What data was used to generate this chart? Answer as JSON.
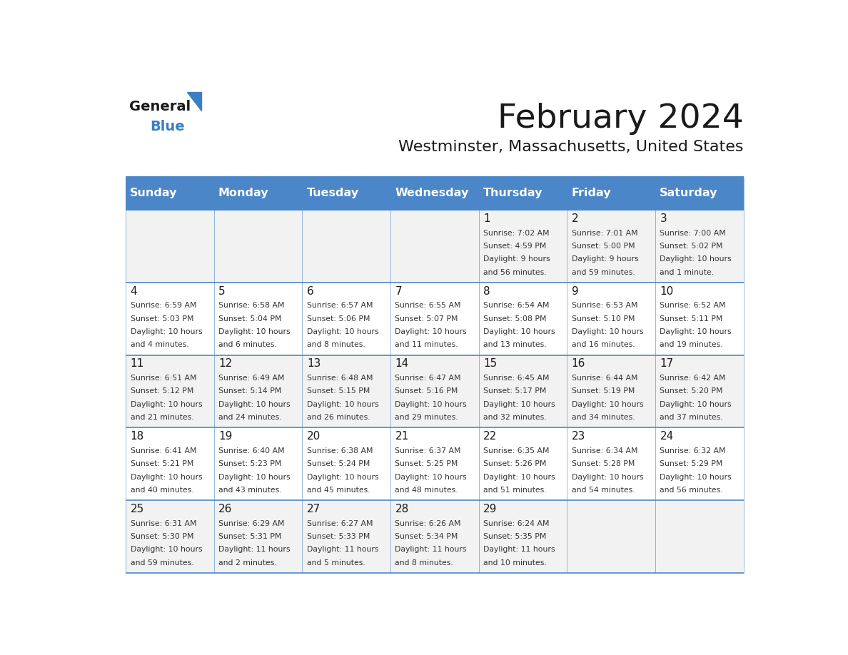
{
  "title": "February 2024",
  "subtitle": "Westminster, Massachusetts, United States",
  "days_of_week": [
    "Sunday",
    "Monday",
    "Tuesday",
    "Wednesday",
    "Thursday",
    "Friday",
    "Saturday"
  ],
  "header_bg": "#4A86C8",
  "header_text": "#FFFFFF",
  "cell_bg_light": "#F2F2F2",
  "cell_bg_white": "#FFFFFF",
  "day_number_color": "#1a1a1a",
  "cell_text_color": "#333333",
  "border_color": "#4A86C8",
  "title_color": "#1a1a1a",
  "subtitle_color": "#1a1a1a",
  "logo_general_color": "#1a1a1a",
  "logo_blue_color": "#3A7FC1",
  "weeks": [
    [
      {
        "day": null,
        "sunrise": null,
        "sunset": null,
        "daylight": null
      },
      {
        "day": null,
        "sunrise": null,
        "sunset": null,
        "daylight": null
      },
      {
        "day": null,
        "sunrise": null,
        "sunset": null,
        "daylight": null
      },
      {
        "day": null,
        "sunrise": null,
        "sunset": null,
        "daylight": null
      },
      {
        "day": 1,
        "sunrise": "7:02 AM",
        "sunset": "4:59 PM",
        "daylight": "9 hours|and 56 minutes."
      },
      {
        "day": 2,
        "sunrise": "7:01 AM",
        "sunset": "5:00 PM",
        "daylight": "9 hours|and 59 minutes."
      },
      {
        "day": 3,
        "sunrise": "7:00 AM",
        "sunset": "5:02 PM",
        "daylight": "10 hours|and 1 minute."
      }
    ],
    [
      {
        "day": 4,
        "sunrise": "6:59 AM",
        "sunset": "5:03 PM",
        "daylight": "10 hours|and 4 minutes."
      },
      {
        "day": 5,
        "sunrise": "6:58 AM",
        "sunset": "5:04 PM",
        "daylight": "10 hours|and 6 minutes."
      },
      {
        "day": 6,
        "sunrise": "6:57 AM",
        "sunset": "5:06 PM",
        "daylight": "10 hours|and 8 minutes."
      },
      {
        "day": 7,
        "sunrise": "6:55 AM",
        "sunset": "5:07 PM",
        "daylight": "10 hours|and 11 minutes."
      },
      {
        "day": 8,
        "sunrise": "6:54 AM",
        "sunset": "5:08 PM",
        "daylight": "10 hours|and 13 minutes."
      },
      {
        "day": 9,
        "sunrise": "6:53 AM",
        "sunset": "5:10 PM",
        "daylight": "10 hours|and 16 minutes."
      },
      {
        "day": 10,
        "sunrise": "6:52 AM",
        "sunset": "5:11 PM",
        "daylight": "10 hours|and 19 minutes."
      }
    ],
    [
      {
        "day": 11,
        "sunrise": "6:51 AM",
        "sunset": "5:12 PM",
        "daylight": "10 hours|and 21 minutes."
      },
      {
        "day": 12,
        "sunrise": "6:49 AM",
        "sunset": "5:14 PM",
        "daylight": "10 hours|and 24 minutes."
      },
      {
        "day": 13,
        "sunrise": "6:48 AM",
        "sunset": "5:15 PM",
        "daylight": "10 hours|and 26 minutes."
      },
      {
        "day": 14,
        "sunrise": "6:47 AM",
        "sunset": "5:16 PM",
        "daylight": "10 hours|and 29 minutes."
      },
      {
        "day": 15,
        "sunrise": "6:45 AM",
        "sunset": "5:17 PM",
        "daylight": "10 hours|and 32 minutes."
      },
      {
        "day": 16,
        "sunrise": "6:44 AM",
        "sunset": "5:19 PM",
        "daylight": "10 hours|and 34 minutes."
      },
      {
        "day": 17,
        "sunrise": "6:42 AM",
        "sunset": "5:20 PM",
        "daylight": "10 hours|and 37 minutes."
      }
    ],
    [
      {
        "day": 18,
        "sunrise": "6:41 AM",
        "sunset": "5:21 PM",
        "daylight": "10 hours|and 40 minutes."
      },
      {
        "day": 19,
        "sunrise": "6:40 AM",
        "sunset": "5:23 PM",
        "daylight": "10 hours|and 43 minutes."
      },
      {
        "day": 20,
        "sunrise": "6:38 AM",
        "sunset": "5:24 PM",
        "daylight": "10 hours|and 45 minutes."
      },
      {
        "day": 21,
        "sunrise": "6:37 AM",
        "sunset": "5:25 PM",
        "daylight": "10 hours|and 48 minutes."
      },
      {
        "day": 22,
        "sunrise": "6:35 AM",
        "sunset": "5:26 PM",
        "daylight": "10 hours|and 51 minutes."
      },
      {
        "day": 23,
        "sunrise": "6:34 AM",
        "sunset": "5:28 PM",
        "daylight": "10 hours|and 54 minutes."
      },
      {
        "day": 24,
        "sunrise": "6:32 AM",
        "sunset": "5:29 PM",
        "daylight": "10 hours|and 56 minutes."
      }
    ],
    [
      {
        "day": 25,
        "sunrise": "6:31 AM",
        "sunset": "5:30 PM",
        "daylight": "10 hours|and 59 minutes."
      },
      {
        "day": 26,
        "sunrise": "6:29 AM",
        "sunset": "5:31 PM",
        "daylight": "11 hours|and 2 minutes."
      },
      {
        "day": 27,
        "sunrise": "6:27 AM",
        "sunset": "5:33 PM",
        "daylight": "11 hours|and 5 minutes."
      },
      {
        "day": 28,
        "sunrise": "6:26 AM",
        "sunset": "5:34 PM",
        "daylight": "11 hours|and 8 minutes."
      },
      {
        "day": 29,
        "sunrise": "6:24 AM",
        "sunset": "5:35 PM",
        "daylight": "11 hours|and 10 minutes."
      },
      {
        "day": null,
        "sunrise": null,
        "sunset": null,
        "daylight": null
      },
      {
        "day": null,
        "sunrise": null,
        "sunset": null,
        "daylight": null
      }
    ]
  ]
}
